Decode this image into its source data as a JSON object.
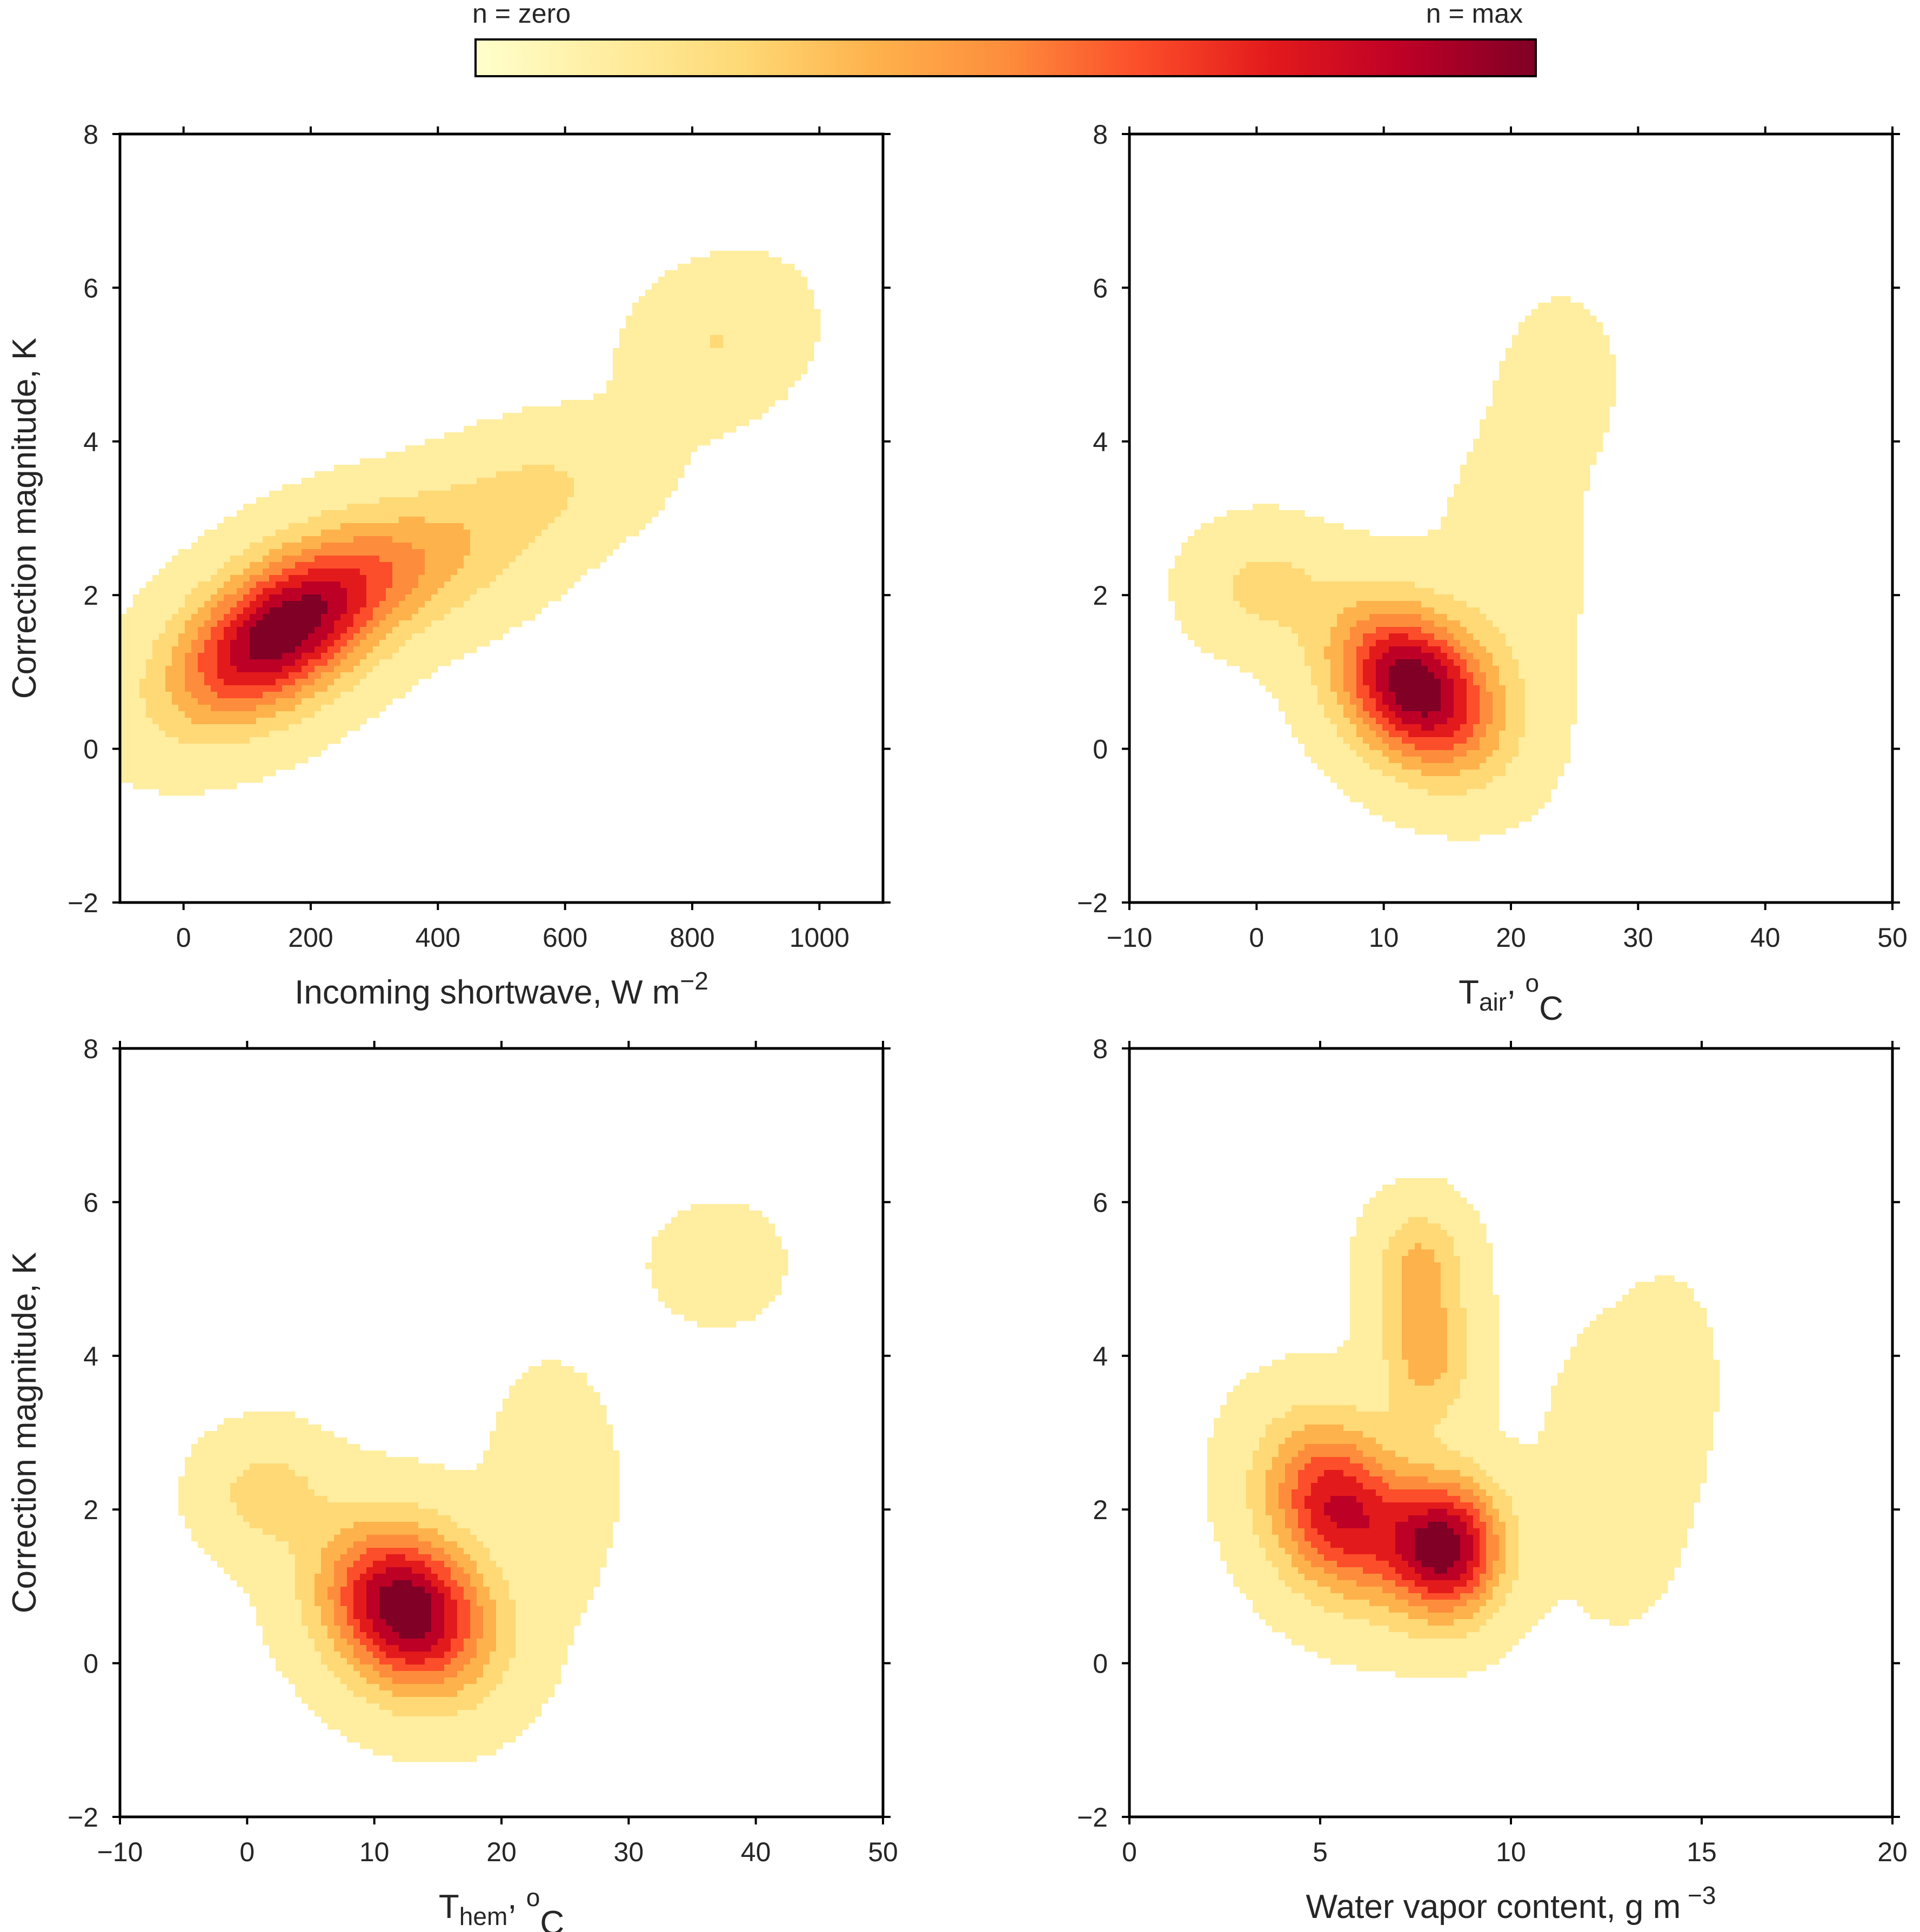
{
  "colorbar": {
    "label_min": "n = zero",
    "label_max": "n = max",
    "colors": [
      "#ffffcc",
      "#ffeda0",
      "#fed976",
      "#feb24c",
      "#fd8d3c",
      "#fc4e2a",
      "#e31a1c",
      "#bd0026",
      "#800026"
    ]
  },
  "chart_data": [
    {
      "type": "heatmap",
      "kind": "2D kernel density estimate (filled contours)",
      "xlabel": "Incoming shortwave, W m",
      "xlabel_sup": "−2",
      "ylabel": "Correction magnitude, K",
      "xlim": [
        -100,
        1100
      ],
      "ylim": [
        -2,
        8
      ],
      "xticks": [
        0,
        200,
        400,
        600,
        800,
        1000
      ],
      "xtick_labels": [
        "0",
        "200",
        "400",
        "600",
        "800",
        "1000"
      ],
      "yticks": [
        -2,
        0,
        2,
        4,
        6,
        8
      ],
      "ytick_labels": [
        "−2",
        "0",
        "2",
        "4",
        "6",
        "8"
      ],
      "peak": {
        "x": 130,
        "y": 1.4
      },
      "components": [
        {
          "x": 150,
          "y": 1.5,
          "sx": 110,
          "sy": 0.75,
          "rho": 0.5,
          "w": 1.0
        },
        {
          "x": 360,
          "y": 2.4,
          "sx": 120,
          "sy": 0.6,
          "rho": 0.3,
          "w": 0.28
        },
        {
          "x": 560,
          "y": 3.4,
          "sx": 110,
          "sy": 0.55,
          "rho": 0.3,
          "w": 0.15
        },
        {
          "x": 840,
          "y": 5.3,
          "sx": 80,
          "sy": 0.6,
          "rho": 0.2,
          "w": 0.15
        }
      ]
    },
    {
      "type": "heatmap",
      "kind": "2D kernel density estimate (filled contours)",
      "xlabel": "T",
      "xlabel_sub": "air",
      "xlabel_suffix": ", ",
      "xlabel_sup": "o",
      "xlabel_end": "C",
      "ylabel": "",
      "xlim": [
        -10,
        50
      ],
      "ylim": [
        -2,
        8
      ],
      "xticks": [
        -10,
        0,
        10,
        20,
        30,
        40,
        50
      ],
      "xtick_labels": [
        "−10",
        "0",
        "10",
        "20",
        "30",
        "40",
        "50"
      ],
      "yticks": [
        -2,
        0,
        2,
        4,
        6,
        8
      ],
      "ytick_labels": [
        "−2",
        "0",
        "2",
        "4",
        "6",
        "8"
      ],
      "peak": {
        "x": 14,
        "y": 0.6
      },
      "components": [
        {
          "x": 12.5,
          "y": 0.8,
          "sx": 4.2,
          "sy": 0.7,
          "rho": -0.3,
          "w": 1.0
        },
        {
          "x": 0.5,
          "y": 2.1,
          "sx": 3.5,
          "sy": 0.5,
          "rho": 0.0,
          "w": 0.18
        },
        {
          "x": 20,
          "y": 2.2,
          "sx": 3.5,
          "sy": 1.2,
          "rho": 0.0,
          "w": 0.07
        },
        {
          "x": 24,
          "y": 4.8,
          "sx": 3.5,
          "sy": 0.9,
          "rho": 0.0,
          "w": 0.04
        }
      ]
    },
    {
      "type": "heatmap",
      "kind": "2D kernel density estimate (filled contours)",
      "xlabel": "T",
      "xlabel_sub": "hem",
      "xlabel_suffix": ", ",
      "xlabel_sup": "o",
      "xlabel_end": "C",
      "ylabel": "Correction magnitude, K",
      "xlim": [
        -10,
        50
      ],
      "ylim": [
        -2,
        8
      ],
      "xticks": [
        -10,
        0,
        10,
        20,
        30,
        40,
        50
      ],
      "xtick_labels": [
        "−10",
        "0",
        "10",
        "20",
        "30",
        "40",
        "50"
      ],
      "yticks": [
        -2,
        0,
        2,
        4,
        6,
        8
      ],
      "ytick_labels": [
        "−2",
        "0",
        "2",
        "4",
        "6",
        "8"
      ],
      "peak": {
        "x": 14,
        "y": 0.6
      },
      "components": [
        {
          "x": 12.5,
          "y": 0.7,
          "sx": 4.3,
          "sy": 0.72,
          "rho": -0.2,
          "w": 1.0
        },
        {
          "x": 1.5,
          "y": 2.2,
          "sx": 3.2,
          "sy": 0.5,
          "rho": 0.0,
          "w": 0.2
        },
        {
          "x": 24,
          "y": 2.3,
          "sx": 3.5,
          "sy": 1.1,
          "rho": 0.0,
          "w": 0.06
        },
        {
          "x": 37,
          "y": 5.2,
          "sx": 4.0,
          "sy": 0.6,
          "rho": 0.0,
          "w": 0.05
        }
      ]
    },
    {
      "type": "heatmap",
      "kind": "2D kernel density estimate (filled contours)",
      "xlabel": "Water vapor content, g m",
      "xlabel_sup": " −3",
      "ylabel": "",
      "xlim": [
        0,
        20
      ],
      "ylim": [
        -2,
        8
      ],
      "xticks": [
        0,
        5,
        10,
        15,
        20
      ],
      "xtick_labels": [
        "0",
        "5",
        "10",
        "15",
        "20"
      ],
      "yticks": [
        -2,
        0,
        2,
        4,
        6,
        8
      ],
      "ytick_labels": [
        "−2",
        "0",
        "2",
        "4",
        "6",
        "8"
      ],
      "peak": {
        "x": 8.3,
        "y": 1.5
      },
      "components": [
        {
          "x": 8.3,
          "y": 1.5,
          "sx": 1.0,
          "sy": 0.6,
          "rho": 0.0,
          "w": 1.0
        },
        {
          "x": 5.5,
          "y": 2.0,
          "sx": 1.3,
          "sy": 0.75,
          "rho": -0.2,
          "w": 0.85
        },
        {
          "x": 7.8,
          "y": 4.0,
          "sx": 0.8,
          "sy": 0.6,
          "rho": 0.0,
          "w": 0.35
        },
        {
          "x": 7.6,
          "y": 5.2,
          "sx": 0.8,
          "sy": 0.5,
          "rho": 0.0,
          "w": 0.3
        },
        {
          "x": 12.8,
          "y": 2.5,
          "sx": 1.3,
          "sy": 1.3,
          "rho": 0.0,
          "w": 0.07
        },
        {
          "x": 14.2,
          "y": 3.8,
          "sx": 0.8,
          "sy": 0.8,
          "rho": 0.0,
          "w": 0.05
        }
      ]
    }
  ]
}
